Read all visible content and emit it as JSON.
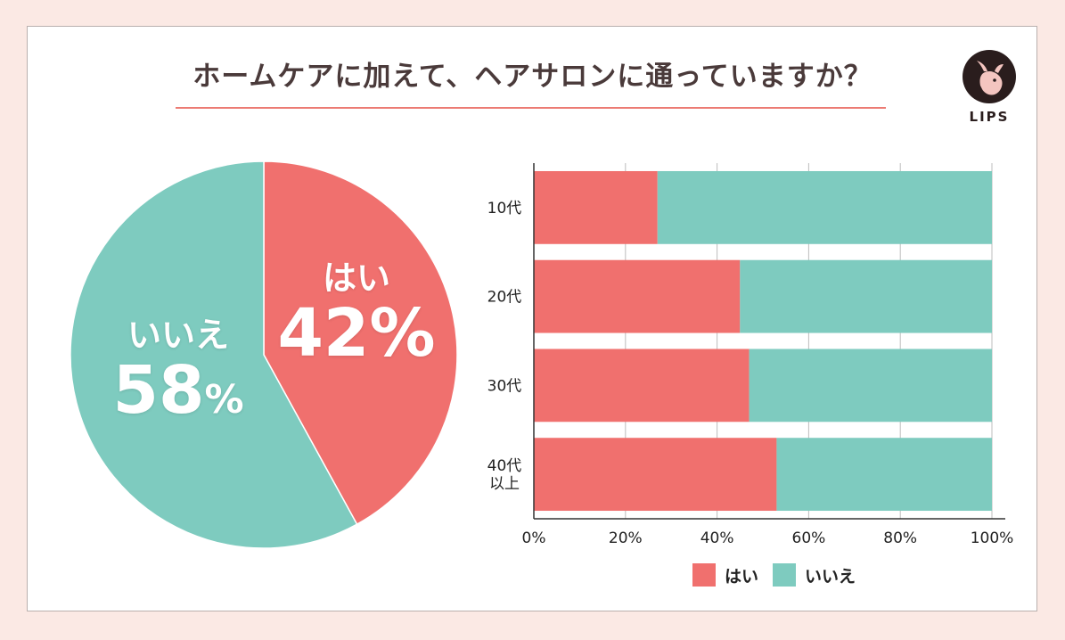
{
  "title": "ホームケアに加えて、ヘアサロンに通っていますか？",
  "logo": {
    "text": "LIPS",
    "icon": "deer-icon"
  },
  "colors": {
    "yes": "#f0706e",
    "no": "#7ecbbf",
    "title_rule": "#ec7b73",
    "background": "#fbe9e4"
  },
  "chart_data": [
    {
      "type": "pie",
      "slices": [
        {
          "label": "はい",
          "value": 42,
          "display": "42%"
        },
        {
          "label": "いいえ",
          "value": 58,
          "display": "58"
        }
      ],
      "percent_sign": "%"
    },
    {
      "type": "bar",
      "orientation": "horizontal",
      "stacked": true,
      "categories": [
        "10代",
        "20代",
        "30代",
        "40代\n以上"
      ],
      "series": [
        {
          "name": "はい",
          "values": [
            27,
            45,
            47,
            53
          ]
        },
        {
          "name": "いいえ",
          "values": [
            73,
            55,
            53,
            47
          ]
        }
      ],
      "xlim": [
        0,
        100
      ],
      "xticks": [
        "0%",
        "20%",
        "40%",
        "60%",
        "80%",
        "100%"
      ],
      "grid": true,
      "legend": {
        "position": "bottom",
        "entries": [
          "はい",
          "いいえ"
        ]
      }
    }
  ]
}
